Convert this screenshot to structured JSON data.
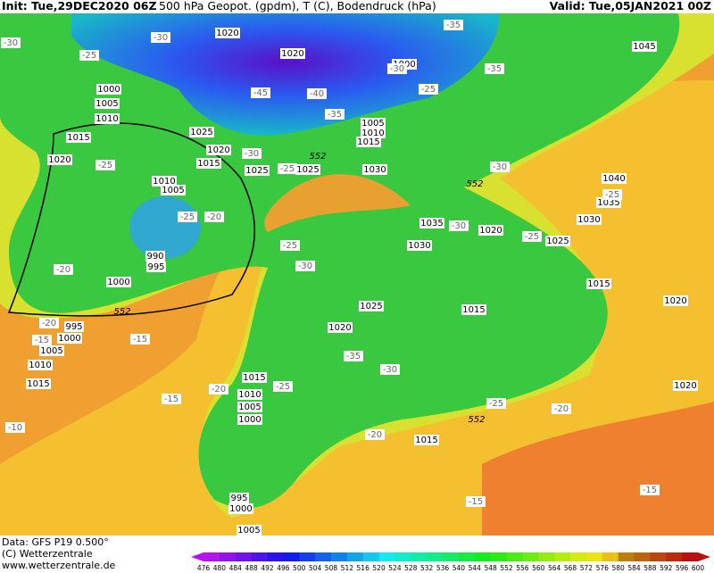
{
  "header": {
    "init": "Init: Tue,29DEC2020 06Z",
    "description": "500 hPa Geopot. (gpdm), T (C), Bodendruck (hPa)",
    "valid": "Valid: Tue,05JAN2021 00Z"
  },
  "footer": {
    "data": "Data: GFS P19 0.500°",
    "copyright": "(C) Wetterzentrale",
    "url": "www.wetterzentrale.de"
  },
  "colorbar": {
    "ticks": [
      476,
      480,
      484,
      488,
      492,
      496,
      500,
      504,
      508,
      512,
      516,
      520,
      524,
      528,
      532,
      536,
      540,
      544,
      548,
      552,
      556,
      560,
      564,
      568,
      572,
      576,
      580,
      584,
      588,
      592,
      596,
      600
    ]
  },
  "map_labels": {
    "isobars": [
      "1020",
      "1020",
      "1000",
      "1045",
      "1000",
      "1005",
      "1010",
      "1015",
      "1025",
      "1005",
      "1010",
      "1015",
      "1020",
      "1015",
      "1025",
      "1025",
      "1030",
      "1020",
      "1010",
      "1005",
      "1040",
      "1035",
      "1030",
      "1035",
      "1030",
      "1020",
      "1025",
      "990",
      "995",
      "1000",
      "1015",
      "1020",
      "1025",
      "1015",
      "995",
      "1000",
      "1005",
      "1010",
      "1020",
      "1015",
      "1015",
      "1010",
      "1005",
      "1000",
      "1020",
      "1015",
      "995",
      "1000",
      "1005"
    ],
    "temperatures": [
      "-30",
      "-30",
      "-25",
      "-35",
      "-35",
      "-30",
      "-40",
      "-45",
      "-35",
      "-25",
      "-25",
      "-30",
      "-25",
      "-30",
      "-25",
      "-20",
      "-30",
      "-25",
      "-25",
      "-25",
      "-30",
      "-20",
      "-20",
      "-15",
      "-15",
      "-35",
      "-30",
      "-20",
      "-25",
      "-15",
      "-25",
      "-20",
      "-10",
      "-20",
      "-15",
      "-15"
    ],
    "contour_552": [
      "552",
      "552",
      "552",
      "552"
    ]
  }
}
